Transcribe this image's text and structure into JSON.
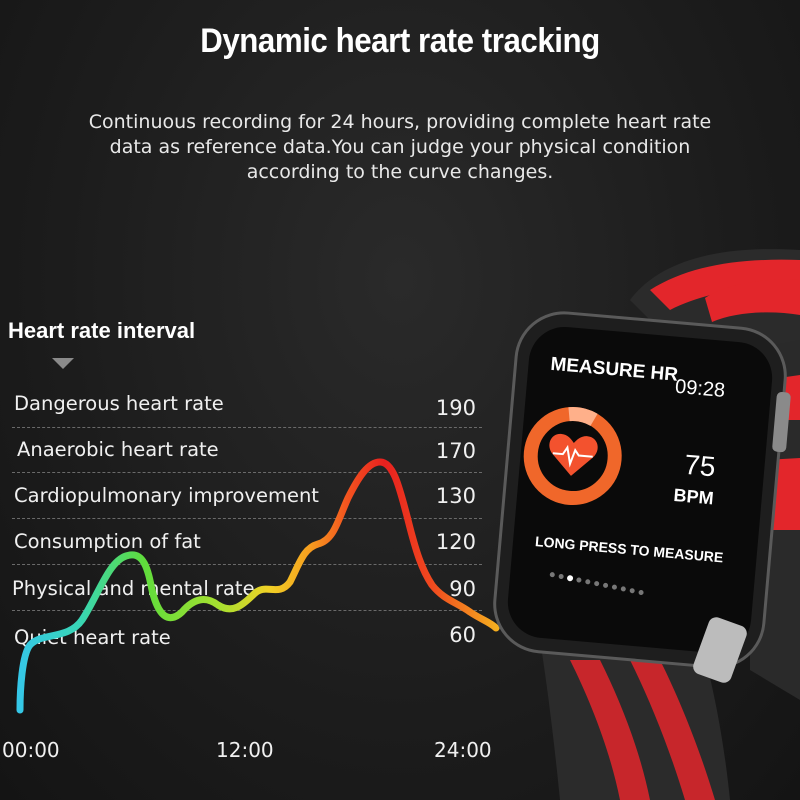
{
  "header": {
    "title": "Dynamic heart rate tracking",
    "description_lines": [
      "Continuous recording for 24 hours, providing complete heart rate",
      "data as reference data.You can judge your physical condition",
      "according to the curve changes."
    ]
  },
  "interval": {
    "title": "Heart rate interval",
    "zones": [
      {
        "label": "Dangerous heart rate",
        "value": "190"
      },
      {
        "label": "Anaerobic heart rate",
        "value": "170"
      },
      {
        "label": "Cardiopulmonary improvement",
        "value": "130"
      },
      {
        "label": "Consumption of fat",
        "value": "120"
      },
      {
        "label": "Physical and mental rate",
        "value": "90"
      },
      {
        "label": "Quiet heart rate",
        "value": "60"
      }
    ],
    "time_labels": [
      "00:00",
      "12:00",
      "24:00"
    ]
  },
  "watch": {
    "screen_title": "MEASURE HR",
    "time": "09:28",
    "bpm_value": "75",
    "bpm_unit": "BPM",
    "hint": "LONG PRESS TO MEASURE",
    "colors": {
      "ring": "#f0672a",
      "strap": "#e3262b",
      "heart": "#f3522e"
    }
  }
}
